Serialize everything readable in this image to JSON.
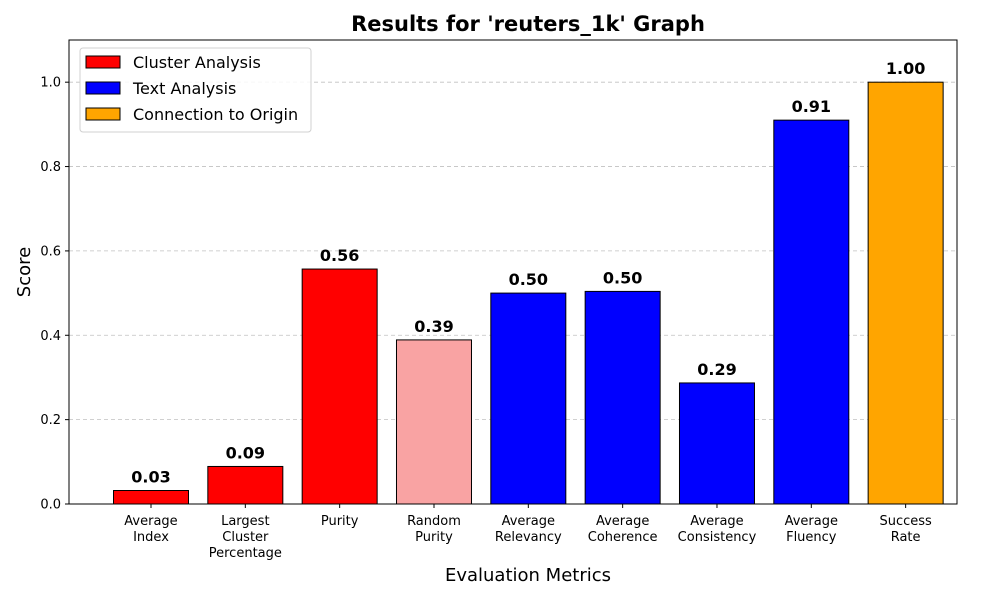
{
  "chart_data": {
    "type": "bar",
    "title": "Results for 'reuters_1k' Graph",
    "xlabel": "Evaluation Metrics",
    "ylabel": "Score",
    "ylim": [
      0,
      1.1
    ],
    "yticks": [
      "0.0",
      "0.2",
      "0.4",
      "0.6",
      "0.8",
      "1.0"
    ],
    "ytick_values": [
      0,
      0.2,
      0.4,
      0.6,
      0.8,
      1.0
    ],
    "grid": "y-dashed",
    "legend_position": "top-left",
    "legend": [
      {
        "label": "Cluster Analysis",
        "color": "#ff0000"
      },
      {
        "label": "Text Analysis",
        "color": "#0000ff"
      },
      {
        "label": "Connection to Origin",
        "color": "#ffa500"
      }
    ],
    "categories": [
      [
        "Average",
        "Index"
      ],
      [
        "Largest",
        "Cluster",
        "Percentage"
      ],
      [
        "Purity"
      ],
      [
        "Random",
        "Purity"
      ],
      [
        "Average",
        "Relevancy"
      ],
      [
        "Average",
        "Coherence"
      ],
      [
        "Average",
        "Consistency"
      ],
      [
        "Average",
        "Fluency"
      ],
      [
        "Success",
        "Rate"
      ]
    ],
    "values": [
      0.032,
      0.089,
      0.557,
      0.389,
      0.5,
      0.504,
      0.287,
      0.91,
      1.0
    ],
    "value_labels": [
      "0.03",
      "0.09",
      "0.56",
      "0.39",
      "0.50",
      "0.50",
      "0.29",
      "0.91",
      "1.00"
    ],
    "colors": [
      "#ff0000",
      "#ff0000",
      "#ff0000",
      "#f9a3a3",
      "#0000ff",
      "#0000ff",
      "#0000ff",
      "#0000ff",
      "#ffa500"
    ]
  }
}
